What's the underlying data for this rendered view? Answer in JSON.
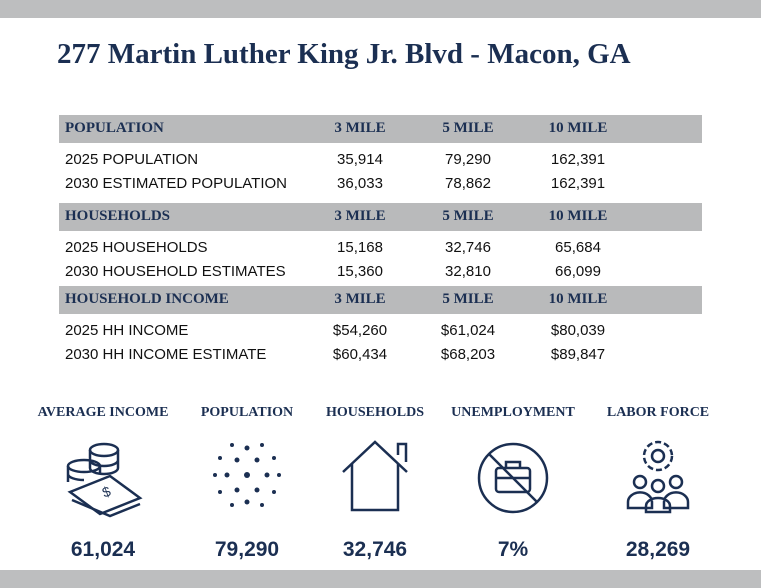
{
  "title": "277 Martin Luther King Jr. Blvd - Macon, GA",
  "sections": [
    {
      "header": [
        "POPULATION",
        "3 MILE",
        "5 MILE",
        "10 MILE"
      ],
      "rows": [
        [
          "2025 POPULATION",
          "35,914",
          "79,290",
          "162,391"
        ],
        [
          "2030 ESTIMATED POPULATION",
          "36,033",
          "78,862",
          "162,391"
        ]
      ]
    },
    {
      "header": [
        "HOUSEHOLDS",
        "3 MILE",
        "5 MILE",
        "10 MILE"
      ],
      "rows": [
        [
          "2025 HOUSEHOLDS",
          "15,168",
          "32,746",
          "65,684"
        ],
        [
          "2030 HOUSEHOLD ESTIMATES",
          "15,360",
          "32,810",
          "66,099"
        ]
      ]
    },
    {
      "header": [
        "HOUSEHOLD INCOME",
        "3 MILE",
        "5 MILE",
        "10 MILE"
      ],
      "rows": [
        [
          "2025 HH INCOME",
          "$54,260",
          "$61,024",
          "$80,039"
        ],
        [
          "2030 HH INCOME ESTIMATE",
          "$60,434",
          "$68,203",
          "$89,847"
        ]
      ]
    }
  ],
  "stats": [
    {
      "label": "AVERAGE INCOME",
      "value": "61,024"
    },
    {
      "label": "POPULATION",
      "value": "79,290"
    },
    {
      "label": "HOUSEHOLDS",
      "value": "32,746"
    },
    {
      "label": "UNEMPLOYMENT",
      "value": "7%"
    },
    {
      "label": "LABOR FORCE",
      "value": "28,269"
    }
  ]
}
